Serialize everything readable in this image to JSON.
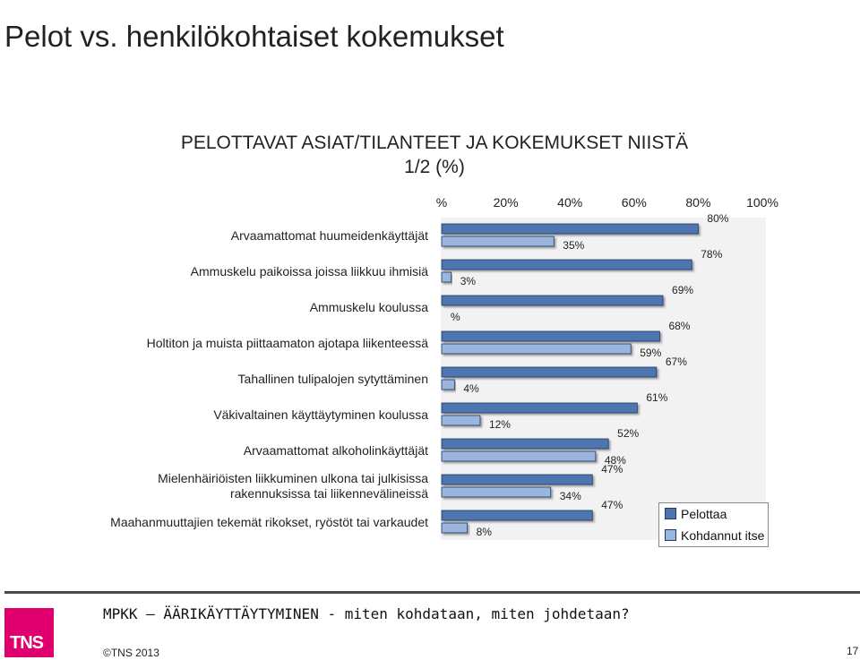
{
  "slide": {
    "title": "Pelot vs. henkilökohtaiset kokemukset",
    "footer_title": "MPKK – ÄÄRIKÄYTTÄYTYMINEN - miten kohdataan, miten johdetaan?",
    "copyright": "©TNS 2013",
    "page_number": "17",
    "logo_text": "TNS",
    "colors": {
      "logo": "#e0006d",
      "footer_line": "#4a4a4a"
    }
  },
  "chart_data": {
    "type": "bar",
    "orientation": "horizontal",
    "title_lines": [
      "PELOTTAVAT ASIAT/TILANTEET JA KOKEMUKSET NIISTÄ",
      "1/2 (%)"
    ],
    "x_ticks": [
      "%",
      "20%",
      "40%",
      "60%",
      "80%",
      "100%"
    ],
    "xlim": [
      0,
      100
    ],
    "grid": false,
    "legend_position": "bottom-right",
    "categories": [
      "Arvaamattomat huumeidenkäyttäjät",
      "Ammuskelu paikoissa joissa liikkuu ihmisiä",
      "Ammuskelu koulussa",
      "Holtiton ja muista piittaamaton ajotapa liikenteessä",
      "Tahallinen tulipalojen sytyttäminen",
      "Väkivaltainen käyttäytyminen koulussa",
      "Arvaamattomat alkoholinkäyttäjät",
      "Mielenhäiriöisten liikkuminen ulkona tai julkisissa rakennuksissa tai liikennevälineissä",
      "Maahanmuuttajien tekemät rikokset, ryöstöt tai varkaudet"
    ],
    "category_lines": [
      [
        "Arvaamattomat huumeidenkäyttäjät"
      ],
      [
        "Ammuskelu paikoissa joissa liikkuu ihmisiä"
      ],
      [
        "Ammuskelu koulussa"
      ],
      [
        "Holtiton ja muista piittaamaton ajotapa liikenteessä"
      ],
      [
        "Tahallinen tulipalojen sytyttäminen"
      ],
      [
        "Väkivaltainen käyttäytyminen koulussa"
      ],
      [
        "Arvaamattomat alkoholinkäyttäjät"
      ],
      [
        "Mielenhäiriöisten liikkuminen ulkona tai julkisissa",
        "rakennuksissa tai liikennevälineissä"
      ],
      [
        "Maahanmuuttajien tekemät rikokset, ryöstöt tai varkaudet"
      ]
    ],
    "series": [
      {
        "name": "Pelottaa",
        "color": "#4f74b0",
        "values": [
          80,
          78,
          69,
          68,
          67,
          61,
          52,
          47,
          47
        ],
        "labels": [
          "80%",
          "78%",
          "69%",
          "68%",
          "67%",
          "61%",
          "52%",
          "47%",
          "47%"
        ]
      },
      {
        "name": "Kohdannut itse",
        "color": "#9ab6dc",
        "values": [
          35,
          3,
          0,
          59,
          4,
          12,
          48,
          34,
          8
        ],
        "labels": [
          "35%",
          "3%",
          "%",
          "59%",
          "4%",
          "12%",
          "48%",
          "34%",
          "8%"
        ]
      }
    ]
  }
}
